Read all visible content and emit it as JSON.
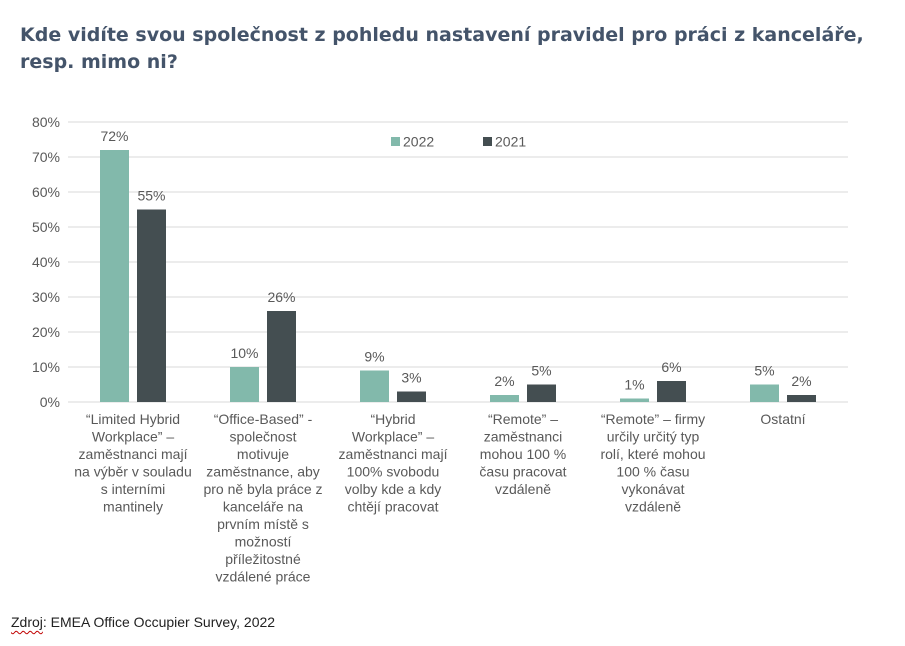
{
  "title": "Kde vidíte svou společnost z pohledu nastavení pravidel pro práci z kanceláře, resp. mimo ni?",
  "source": {
    "label": "Zdroj",
    "text": ": EMEA Office Occupier Survey, 2022"
  },
  "colors": {
    "series_2022": "#82b9ab",
    "series_2021": "#444e51",
    "grid": "#d9d9d9",
    "axis_text": "#595959",
    "title": "#44546a"
  },
  "chart_data": {
    "type": "bar",
    "ylim": [
      0,
      80
    ],
    "yticks": [
      "0%",
      "10%",
      "20%",
      "30%",
      "40%",
      "50%",
      "60%",
      "70%",
      "80%"
    ],
    "grid": true,
    "legend_position": "top",
    "categories": [
      [
        "“Limited Hybrid",
        "Workplace” –",
        "zaměstnanci mají",
        "na výběr v souladu",
        "s interními",
        "mantinely"
      ],
      [
        "“Office-Based” -",
        "společnost",
        "motivuje",
        "zaměstnance, aby",
        "pro ně byla práce z",
        "kanceláře na",
        "prvním místě s",
        "možností",
        "příležitostné",
        "vzdálené práce"
      ],
      [
        "“Hybrid",
        "Workplace” –",
        "zaměstnanci mají",
        "100% svobodu",
        "volby kde a kdy",
        "chtějí pracovat"
      ],
      [
        "“Remote” –",
        "zaměstnanci",
        "mohou 100 %",
        "času pracovat",
        "vzdáleně"
      ],
      [
        "“Remote” – firmy",
        "určily určitý typ",
        "rolí, které mohou",
        "100 % času",
        "vykonávat",
        "vzdáleně"
      ],
      [
        "Ostatní"
      ]
    ],
    "series": [
      {
        "name": "2022",
        "values": [
          72,
          10,
          9,
          2,
          1,
          5
        ],
        "labels": [
          "72%",
          "10%",
          "9%",
          "2%",
          "1%",
          "5%"
        ]
      },
      {
        "name": "2021",
        "values": [
          55,
          26,
          3,
          5,
          6,
          2
        ],
        "labels": [
          "55%",
          "26%",
          "3%",
          "5%",
          "6%",
          "2%"
        ]
      }
    ]
  }
}
